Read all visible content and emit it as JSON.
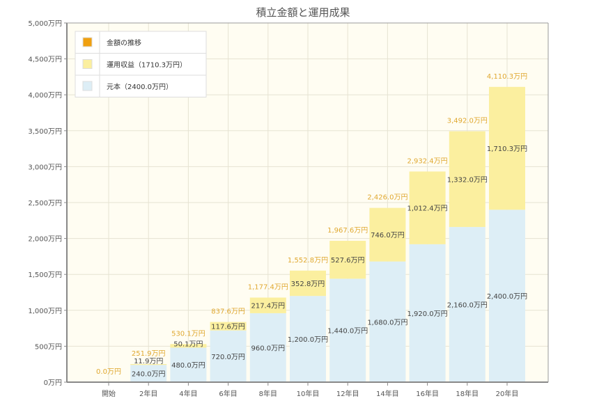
{
  "chart_data": {
    "type": "bar",
    "stacked": true,
    "title": "積立金額と運用成果",
    "categories": [
      "開始",
      "2年目",
      "4年目",
      "6年目",
      "8年目",
      "10年目",
      "12年目",
      "14年目",
      "16年目",
      "18年目",
      "20年目"
    ],
    "series": [
      {
        "name": "元本（2400.0万円）",
        "color": "#ddeef6",
        "values": [
          0,
          240,
          480,
          720,
          960,
          1200,
          1440,
          1680,
          1920,
          2160,
          2400
        ],
        "labels": [
          "",
          "240.0万円",
          "480.0万円",
          "720.0万円",
          "960.0万円",
          "1,200.0万円",
          "1,440.0万円",
          "1,680.0万円",
          "1,920.0万円",
          "2,160.0万円",
          "2,400.0万円"
        ]
      },
      {
        "name": "運用収益（1710.3万円）",
        "color": "#fbef9f",
        "values": [
          0,
          11.9,
          50.1,
          117.6,
          217.4,
          352.8,
          527.6,
          746.0,
          1012.4,
          1332.0,
          1710.3
        ],
        "labels": [
          "",
          "11.9万円",
          "50.1万円",
          "117.6万円",
          "217.4万円",
          "352.8万円",
          "527.6万円",
          "746.0万円",
          "1,012.4万円",
          "1,332.0万円",
          "1,710.3万円"
        ]
      }
    ],
    "totals": {
      "name": "金額の推移",
      "color": "#f0a010",
      "label_color": "#e0a830",
      "values": [
        0,
        251.9,
        530.1,
        837.6,
        1177.4,
        1552.8,
        1967.6,
        2426.0,
        2932.4,
        3492.0,
        4110.3
      ],
      "labels": [
        "0.0万円",
        "251.9万円",
        "530.1万円",
        "837.6万円",
        "1,177.4万円",
        "1,552.8万円",
        "1,967.6万円",
        "2,426.0万円",
        "2,932.4万円",
        "3,492.0万円",
        "4,110.3万円"
      ]
    },
    "ylim": [
      0,
      5000
    ],
    "yticks": [
      0,
      500,
      1000,
      1500,
      2000,
      2500,
      3000,
      3500,
      4000,
      4500,
      5000
    ],
    "ytick_labels": [
      "0万円",
      "500万円",
      "1,000万円",
      "1,500万円",
      "2,000万円",
      "2,500万円",
      "3,000万円",
      "3,500万円",
      "4,000万円",
      "4,500万円",
      "5,000万円"
    ],
    "grid": true,
    "legend_position": "top-left",
    "background": "#fffdf2"
  }
}
